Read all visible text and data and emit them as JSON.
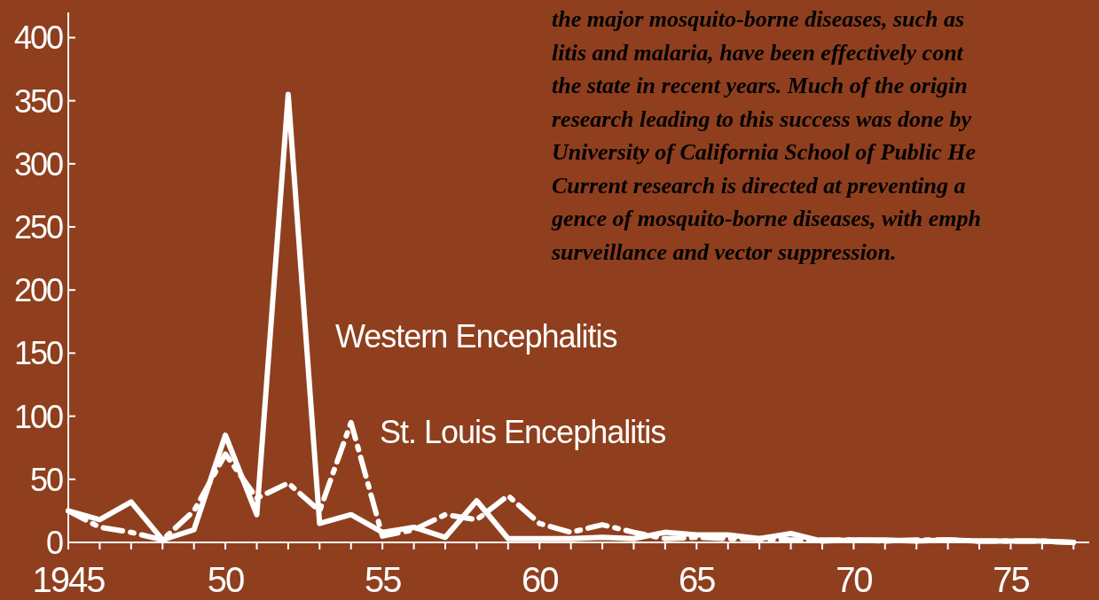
{
  "chart_data": {
    "type": "line",
    "x": [
      1945,
      1946,
      1947,
      1948,
      1949,
      1950,
      1951,
      1952,
      1953,
      1954,
      1955,
      1956,
      1957,
      1958,
      1959,
      1960,
      1961,
      1962,
      1963,
      1964,
      1965,
      1966,
      1967,
      1968,
      1969,
      1970,
      1971,
      1972,
      1973,
      1974,
      1975,
      1976,
      1977
    ],
    "series": [
      {
        "name": "Western Encephalitis",
        "color": "#ffffff",
        "line_style": "solid",
        "values": [
          25,
          18,
          32,
          2,
          10,
          85,
          22,
          355,
          15,
          22,
          8,
          12,
          4,
          33,
          3,
          3,
          3,
          4,
          3,
          8,
          6,
          6,
          3,
          7,
          1,
          2,
          2,
          1,
          2,
          1,
          1,
          1,
          0
        ]
      },
      {
        "name": "St. Louis Encephalitis",
        "color": "#ffffff",
        "line_style": "dashed",
        "values": [
          25,
          12,
          8,
          2,
          25,
          70,
          35,
          47,
          25,
          95,
          5,
          10,
          22,
          18,
          37,
          15,
          8,
          14,
          8,
          3,
          4,
          3,
          3,
          2,
          2,
          2,
          1,
          2,
          2,
          1,
          1,
          1,
          0
        ]
      }
    ],
    "xlim": [
      1945,
      1977.5
    ],
    "xticks": [
      {
        "value": 1945,
        "label": "1945"
      },
      {
        "value": 1946,
        "label": null
      },
      {
        "value": 1947,
        "label": null
      },
      {
        "value": 1948,
        "label": null
      },
      {
        "value": 1949,
        "label": null
      },
      {
        "value": 1950,
        "label": "50"
      },
      {
        "value": 1951,
        "label": null
      },
      {
        "value": 1952,
        "label": null
      },
      {
        "value": 1953,
        "label": null
      },
      {
        "value": 1954,
        "label": null
      },
      {
        "value": 1955,
        "label": "55"
      },
      {
        "value": 1956,
        "label": null
      },
      {
        "value": 1957,
        "label": null
      },
      {
        "value": 1958,
        "label": null
      },
      {
        "value": 1959,
        "label": null
      },
      {
        "value": 1960,
        "label": "60"
      },
      {
        "value": 1961,
        "label": null
      },
      {
        "value": 1962,
        "label": null
      },
      {
        "value": 1963,
        "label": null
      },
      {
        "value": 1964,
        "label": null
      },
      {
        "value": 1965,
        "label": "65"
      },
      {
        "value": 1966,
        "label": null
      },
      {
        "value": 1967,
        "label": null
      },
      {
        "value": 1968,
        "label": null
      },
      {
        "value": 1969,
        "label": null
      },
      {
        "value": 1970,
        "label": "70"
      },
      {
        "value": 1971,
        "label": null
      },
      {
        "value": 1972,
        "label": null
      },
      {
        "value": 1973,
        "label": null
      },
      {
        "value": 1974,
        "label": null
      },
      {
        "value": 1975,
        "label": "75"
      },
      {
        "value": 1976,
        "label": null
      },
      {
        "value": 1977,
        "label": null
      }
    ],
    "ylim": [
      0,
      420
    ],
    "yticks": [
      0,
      50,
      100,
      150,
      200,
      250,
      300,
      350,
      400
    ],
    "annotations": [
      "the major mosquito-borne diseases, such as",
      "litis and malaria, have been effectively cont",
      "the state in recent years. Much of the origin",
      "research leading to this success was done by",
      "University of California School of Public He",
      "Current research is directed at preventing a",
      "gence of mosquito-borne diseases, with emph",
      "surveillance and vector suppression."
    ],
    "legend": false,
    "grid": false,
    "marker": "none"
  }
}
